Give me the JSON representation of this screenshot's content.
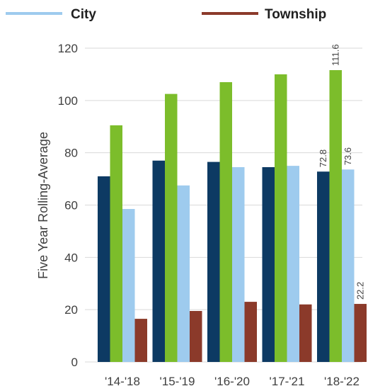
{
  "chart_data": {
    "type": "bar",
    "title": "",
    "xlabel": "",
    "ylabel": "Five Year Rolling-Average",
    "ylim": [
      0,
      120
    ],
    "yticks": [
      0,
      20,
      40,
      60,
      80,
      100,
      120
    ],
    "grid": true,
    "legend_position": "top",
    "categories": [
      "'14-'18",
      "'15-'19",
      "'16-'20",
      "'17-'21",
      "'18-'22"
    ],
    "series": [
      {
        "name": "",
        "color": "#0d3a63",
        "values": [
          71,
          77,
          76.5,
          74.5,
          72.8
        ]
      },
      {
        "name": "",
        "color": "#7cbd2b",
        "values": [
          90.5,
          102.5,
          107,
          110,
          111.6
        ]
      },
      {
        "name": "City",
        "color": "#9ecbee",
        "values": [
          58.5,
          67.5,
          74.5,
          75,
          73.6
        ]
      },
      {
        "name": "Township",
        "color": "#8b3a2a",
        "values": [
          16.5,
          19.5,
          23,
          22,
          22.2
        ]
      }
    ],
    "data_labels": [
      {
        "category": "'18-'22",
        "series": 0,
        "text": "72.8"
      },
      {
        "category": "'18-'22",
        "series": 1,
        "text": "111.6"
      },
      {
        "category": "'18-'22",
        "series": 2,
        "text": "73.6"
      },
      {
        "category": "'18-'22",
        "series": 3,
        "text": "22.2"
      }
    ]
  },
  "legend": {
    "items": [
      {
        "label": "City",
        "color": "#9ecbee"
      },
      {
        "label": "Township",
        "color": "#8b3a2a"
      }
    ]
  }
}
